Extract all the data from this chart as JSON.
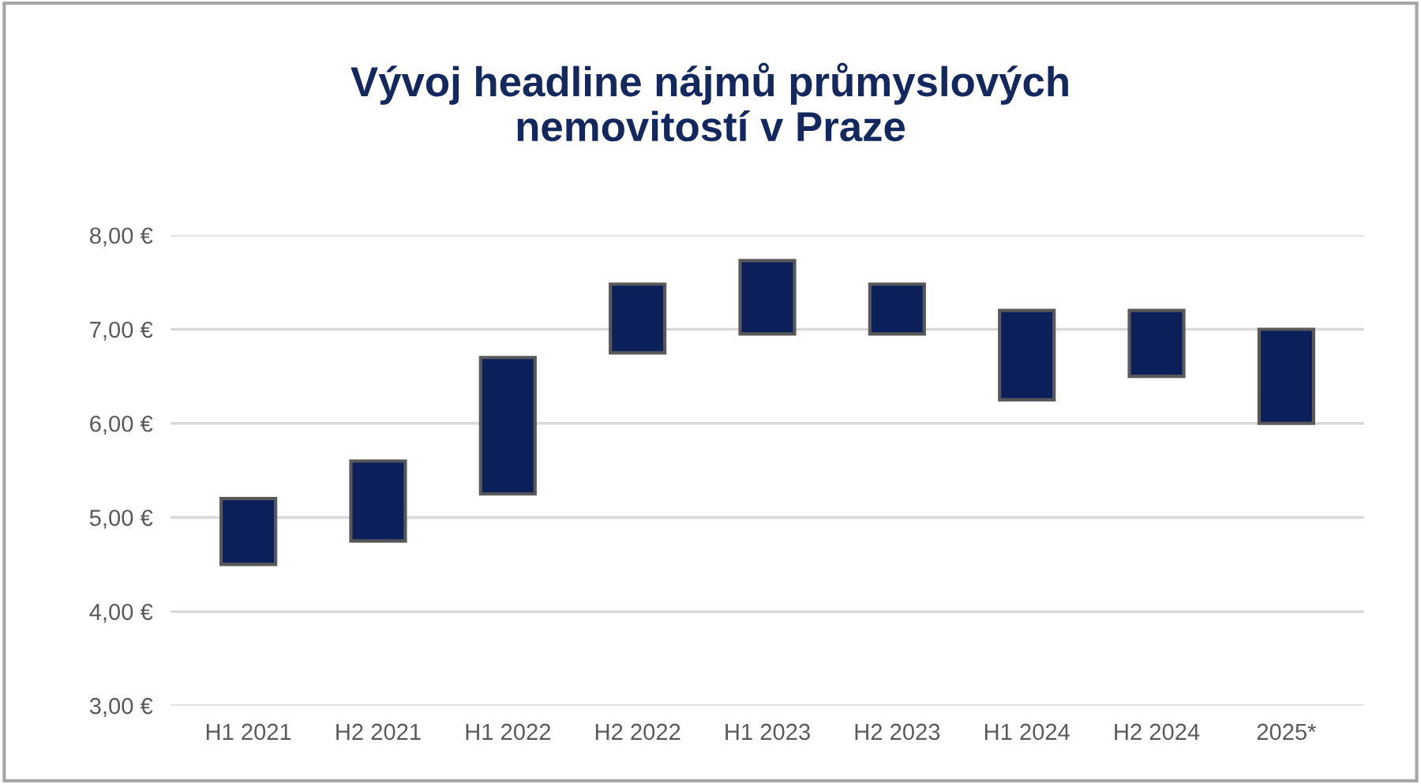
{
  "chart_data": {
    "type": "bar",
    "title": "Vývoj headline nájmů průmyslových\nnemovitostí v Praze",
    "categories": [
      "H1 2021",
      "H2 2021",
      "H1 2022",
      "H2 2022",
      "H1 2023",
      "H2 2023",
      "H1 2024",
      "H2 2024",
      "2025*"
    ],
    "base": [
      4.5,
      4.75,
      5.25,
      6.75,
      6.95,
      6.95,
      6.25,
      6.5,
      6.0
    ],
    "values": [
      0.7,
      0.85,
      1.45,
      0.73,
      0.78,
      0.53,
      0.95,
      0.7,
      1.0
    ],
    "color": "#0b1f5b",
    "ylim": [
      3,
      8
    ],
    "yticks": [
      {
        "value": 3,
        "label": "3,00 €"
      },
      {
        "value": 4,
        "label": "4,00 €"
      },
      {
        "value": 5,
        "label": "5,00 €"
      },
      {
        "value": 6,
        "label": "6,00 €"
      },
      {
        "value": 7,
        "label": "7,00 €"
      },
      {
        "value": 8,
        "label": "8,00 €"
      }
    ],
    "grid": "y"
  }
}
